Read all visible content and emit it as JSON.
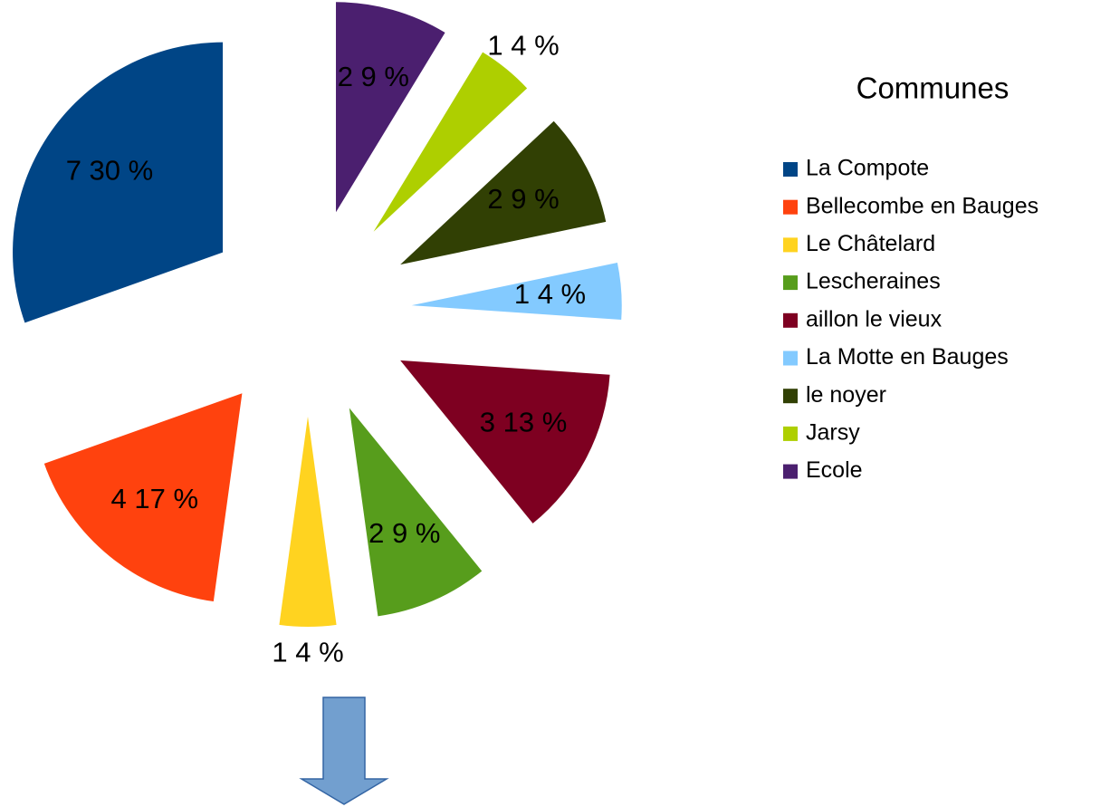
{
  "chart_data": {
    "type": "pie",
    "legend_title": "Communes",
    "categories": [
      "La Compote",
      "Bellecombe en Bauges",
      "Le Châtelard",
      "Lescheraines",
      "aillon le vieux",
      "La Motte en Bauges",
      "le noyer",
      "Jarsy",
      "Ecole"
    ],
    "values": [
      7,
      4,
      1,
      2,
      3,
      1,
      2,
      1,
      2
    ],
    "value_labels": [
      "7 30 %",
      "4 17 %",
      "1 4 %",
      "2 9 %",
      "3 13 %",
      "1 4 %",
      "2 9 %",
      "1 4 %",
      "2 9 %"
    ],
    "colors": [
      "#004586",
      "#ff420e",
      "#ffd320",
      "#579d1c",
      "#7e0021",
      "#83caff",
      "#314004",
      "#aecf00",
      "#4b1f6f"
    ],
    "legend": "right"
  }
}
